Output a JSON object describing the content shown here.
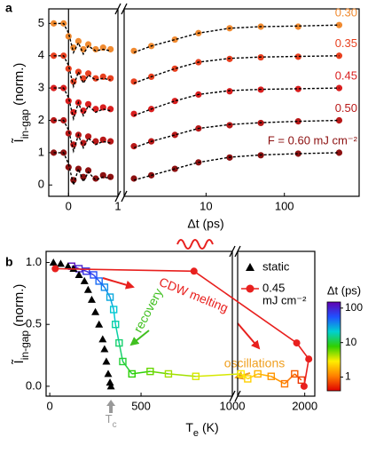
{
  "chart_data": [
    {
      "type": "scatter",
      "panel": "a",
      "ylabel": {
        "symbol": "Ĩ",
        "subscript": "in-gap",
        "unit": "(norm.)"
      },
      "xlabel": "Δt (ps)",
      "segments": [
        {
          "scale": "linear",
          "xlim": [
            -0.4,
            1
          ],
          "xticks": [
            0,
            1
          ]
        },
        {
          "scale": "log",
          "xlim": [
            0.9,
            900
          ],
          "xticks": [
            10,
            100
          ]
        }
      ],
      "ylim": [
        -0.35,
        5.45
      ],
      "yticks": [
        0,
        1,
        2,
        3,
        4,
        5
      ],
      "x": [
        -0.3,
        -0.1,
        0,
        0.1,
        0.2,
        0.3,
        0.4,
        0.55,
        0.7,
        0.85,
        1.2,
        2,
        4,
        8,
        20,
        50,
        150,
        500
      ],
      "fit_color": "#000000",
      "series": [
        {
          "name": "0.30",
          "color": "#f08a30",
          "values": [
            5.0,
            5.0,
            4.6,
            4.25,
            4.45,
            4.2,
            4.35,
            4.2,
            4.25,
            4.2,
            4.15,
            4.3,
            4.5,
            4.7,
            4.85,
            4.9,
            4.9,
            4.95
          ],
          "fit": [
            5.0,
            5.0,
            4.7,
            4.1,
            4.4,
            4.05,
            4.3,
            4.15,
            4.2,
            4.15,
            4.1,
            4.3,
            4.5,
            4.7,
            4.85,
            4.9,
            4.92,
            4.95
          ]
        },
        {
          "name": "0.35",
          "color": "#e8401f",
          "values": [
            4.0,
            4.0,
            3.6,
            3.2,
            3.5,
            3.3,
            3.45,
            3.3,
            3.35,
            3.3,
            3.2,
            3.35,
            3.6,
            3.8,
            3.9,
            3.95,
            3.97,
            4.0
          ],
          "fit": [
            4.0,
            4.0,
            3.7,
            3.05,
            3.5,
            3.15,
            3.4,
            3.25,
            3.3,
            3.25,
            3.15,
            3.35,
            3.6,
            3.8,
            3.92,
            3.96,
            3.98,
            4.0
          ]
        },
        {
          "name": "0.45",
          "color": "#d91e1e",
          "values": [
            3.0,
            3.0,
            2.6,
            2.25,
            2.55,
            2.3,
            2.5,
            2.35,
            2.4,
            2.35,
            2.2,
            2.35,
            2.6,
            2.8,
            2.9,
            2.95,
            2.97,
            3.0
          ],
          "fit": [
            3.0,
            3.0,
            2.7,
            2.05,
            2.55,
            2.15,
            2.45,
            2.25,
            2.35,
            2.3,
            2.15,
            2.35,
            2.6,
            2.8,
            2.92,
            2.96,
            2.98,
            3.0
          ]
        },
        {
          "name": "0.50",
          "color": "#b81818",
          "values": [
            2.0,
            2.0,
            1.6,
            1.25,
            1.55,
            1.3,
            1.5,
            1.35,
            1.4,
            1.35,
            1.2,
            1.35,
            1.55,
            1.75,
            1.85,
            1.92,
            1.97,
            2.0
          ],
          "fit": [
            2.0,
            2.0,
            1.7,
            1.05,
            1.55,
            1.15,
            1.45,
            1.25,
            1.35,
            1.3,
            1.15,
            1.35,
            1.55,
            1.75,
            1.87,
            1.93,
            1.97,
            2.0
          ]
        },
        {
          "name": "F = 0.60 mJ cm⁻²",
          "color": "#8c1010",
          "values": [
            1.0,
            1.0,
            0.55,
            0.15,
            0.5,
            0.25,
            0.45,
            0.2,
            0.3,
            0.25,
            0.2,
            0.3,
            0.5,
            0.7,
            0.85,
            0.92,
            0.97,
            1.0
          ],
          "fit": [
            1.0,
            1.0,
            0.65,
            0.0,
            0.5,
            0.1,
            0.4,
            0.15,
            0.25,
            0.2,
            0.15,
            0.3,
            0.5,
            0.7,
            0.86,
            0.93,
            0.97,
            1.0
          ]
        }
      ]
    },
    {
      "type": "trajectory",
      "panel": "b",
      "ylabel": {
        "symbol": "Ĩ",
        "subscript": "in-gap",
        "unit": "(norm.)"
      },
      "xlabel": {
        "symbol": "T",
        "subscript": "e",
        "unit": "(K)"
      },
      "segments": [
        {
          "scale": "linear",
          "xlim": [
            -20,
            1000
          ],
          "xticks": [
            0,
            500,
            1000
          ]
        },
        {
          "scale": "linear",
          "xlim": [
            1000,
            2150
          ],
          "xticks": [
            2000
          ]
        }
      ],
      "ylim": [
        -0.08,
        1.09
      ],
      "yticks": [
        {
          "value": 0,
          "label": "0.0"
        },
        0.5,
        {
          "value": 1,
          "label": "1.0"
        }
      ],
      "legend": "upper right",
      "series": [
        {
          "name": "static",
          "color": "#000000",
          "marker": "triangle",
          "x": [
            20,
            60,
            100,
            130,
            160,
            190,
            210,
            230,
            250,
            270,
            290,
            300,
            310,
            320,
            330,
            335
          ],
          "values": [
            1.0,
            0.99,
            0.97,
            0.95,
            0.9,
            0.85,
            0.78,
            0.7,
            0.6,
            0.5,
            0.38,
            0.3,
            0.2,
            0.1,
            0.03,
            0.0
          ]
        },
        {
          "name": "0.45",
          "unit": "mJ cm⁻²",
          "color": "#e8201e",
          "marker": "circle",
          "x": [
            30,
            790,
            1880,
            2060,
            1990
          ],
          "values": [
            0.95,
            0.93,
            0.35,
            0.22,
            0.0
          ]
        }
      ],
      "recovery": {
        "x": [
          1950,
          1850,
          1700,
          1500,
          1300,
          1150,
          1050,
          800,
          650,
          550,
          450,
          400,
          380,
          360,
          350,
          330,
          300,
          270,
          240,
          200,
          160,
          120
        ],
        "values": [
          0.05,
          0.1,
          0.02,
          0.08,
          0.1,
          0.06,
          0.1,
          0.08,
          0.1,
          0.12,
          0.1,
          0.2,
          0.35,
          0.5,
          0.62,
          0.72,
          0.8,
          0.85,
          0.9,
          0.93,
          0.95,
          0.97
        ],
        "dt": [
          0.6,
          0.8,
          1,
          1.3,
          1.7,
          2.2,
          2.8,
          3.5,
          4.5,
          6,
          8,
          10,
          13,
          17,
          22,
          28,
          35,
          45,
          60,
          80,
          100,
          130
        ]
      },
      "colorbar": {
        "title": "Δt (ps)",
        "scale": "log",
        "clim": [
          0.4,
          150
        ],
        "ticks": [
          1,
          10,
          100
        ],
        "colormap": [
          "#e00000",
          "#ff8000",
          "#ffee00",
          "#30d000",
          "#00d0d0",
          "#2050ff",
          "#6000b0"
        ]
      },
      "annotations": [
        "CDW melting",
        "recovery",
        "oscillations"
      ],
      "tc": {
        "value": 335,
        "label": "T",
        "subscript": "c"
      }
    }
  ]
}
